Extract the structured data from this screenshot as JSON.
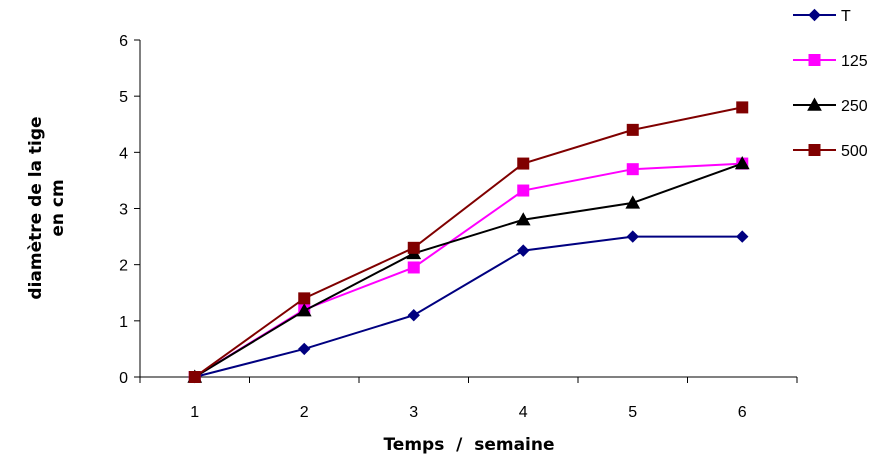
{
  "chart_data": {
    "type": "line",
    "x": [
      1,
      2,
      3,
      4,
      5,
      6
    ],
    "categories": [
      "1",
      "2",
      "3",
      "4",
      "5",
      "6"
    ],
    "xlabel": "Temps  /  semaine",
    "ylabel_lines": [
      "diamètre de la tige",
      "en cm"
    ],
    "ylim": [
      0,
      6
    ],
    "yticks": [
      "0",
      "1",
      "2",
      "3",
      "4",
      "5",
      "6"
    ],
    "grid": false,
    "legend_position": "top-right",
    "series": [
      {
        "name": "T",
        "color": "#000080",
        "marker": "diamond",
        "values": [
          0,
          0.5,
          1.1,
          2.25,
          2.5,
          2.5
        ]
      },
      {
        "name": "125",
        "color": "#ff00ff",
        "marker": "square",
        "values": [
          0,
          1.2,
          1.95,
          3.32,
          3.7,
          3.8
        ]
      },
      {
        "name": "250",
        "color": "#000000",
        "marker": "triangle",
        "values": [
          0,
          1.18,
          2.2,
          2.8,
          3.1,
          3.8
        ]
      },
      {
        "name": "500",
        "color": "#800000",
        "marker": "square",
        "values": [
          0,
          1.4,
          2.3,
          3.8,
          4.4,
          4.8
        ]
      }
    ]
  }
}
